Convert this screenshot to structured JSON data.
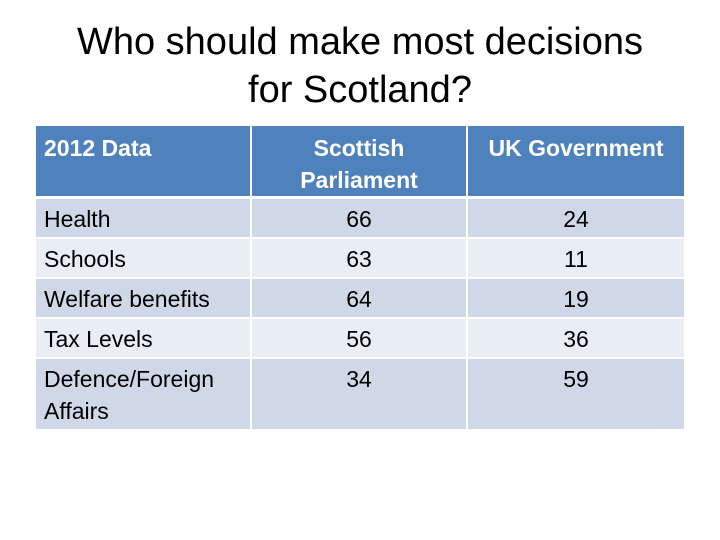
{
  "title": {
    "line1": "Who should make most decisions",
    "line2": "for Scotland?"
  },
  "table": {
    "headers": [
      "2012 Data",
      "Scottish Parliament",
      "UK Government"
    ],
    "rows": [
      {
        "label": "Health",
        "scottish": "66",
        "uk": "24"
      },
      {
        "label": "Schools",
        "scottish": "63",
        "uk": "11"
      },
      {
        "label": "Welfare benefits",
        "scottish": "64",
        "uk": "19"
      },
      {
        "label": "Tax Levels",
        "scottish": "56",
        "uk": "36"
      },
      {
        "label": "Defence/Foreign Affairs",
        "scottish": "34",
        "uk": "59"
      }
    ]
  },
  "colors": {
    "header_bg": "#4f81bd",
    "row_odd_bg": "#d0d8e8",
    "row_even_bg": "#e9edf4"
  }
}
